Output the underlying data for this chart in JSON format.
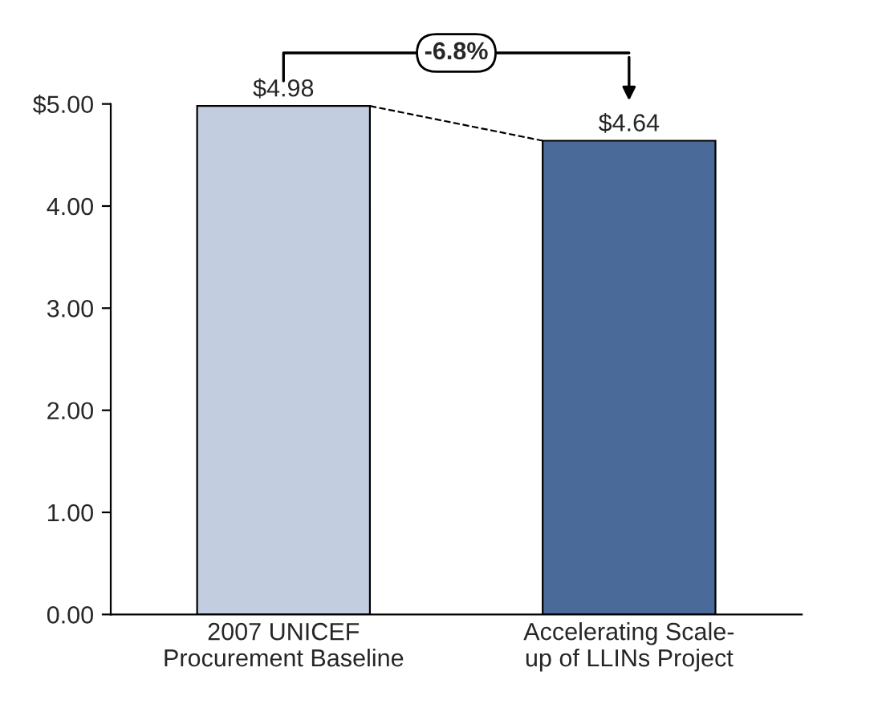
{
  "chart_data": {
    "type": "bar",
    "categories": [
      "2007 UNICEF\nProcurement Baseline",
      "Accelerating Scale-\nup of LLINs Project"
    ],
    "values": [
      4.98,
      4.64
    ],
    "colors": [
      "#c3cde0",
      "#4a6a9a"
    ],
    "value_labels": [
      "$4.98",
      "$4.64"
    ],
    "ylim": [
      0,
      5
    ],
    "yticks": [
      {
        "value": 0,
        "label": "0.00"
      },
      {
        "value": 1,
        "label": "1.00"
      },
      {
        "value": 2,
        "label": "2.00"
      },
      {
        "value": 3,
        "label": "3.00"
      },
      {
        "value": 4,
        "label": "4.00"
      },
      {
        "value": 5,
        "label": "$5.00"
      }
    ],
    "annotations": [
      "-6.8%"
    ],
    "grid": false,
    "legend": false
  }
}
